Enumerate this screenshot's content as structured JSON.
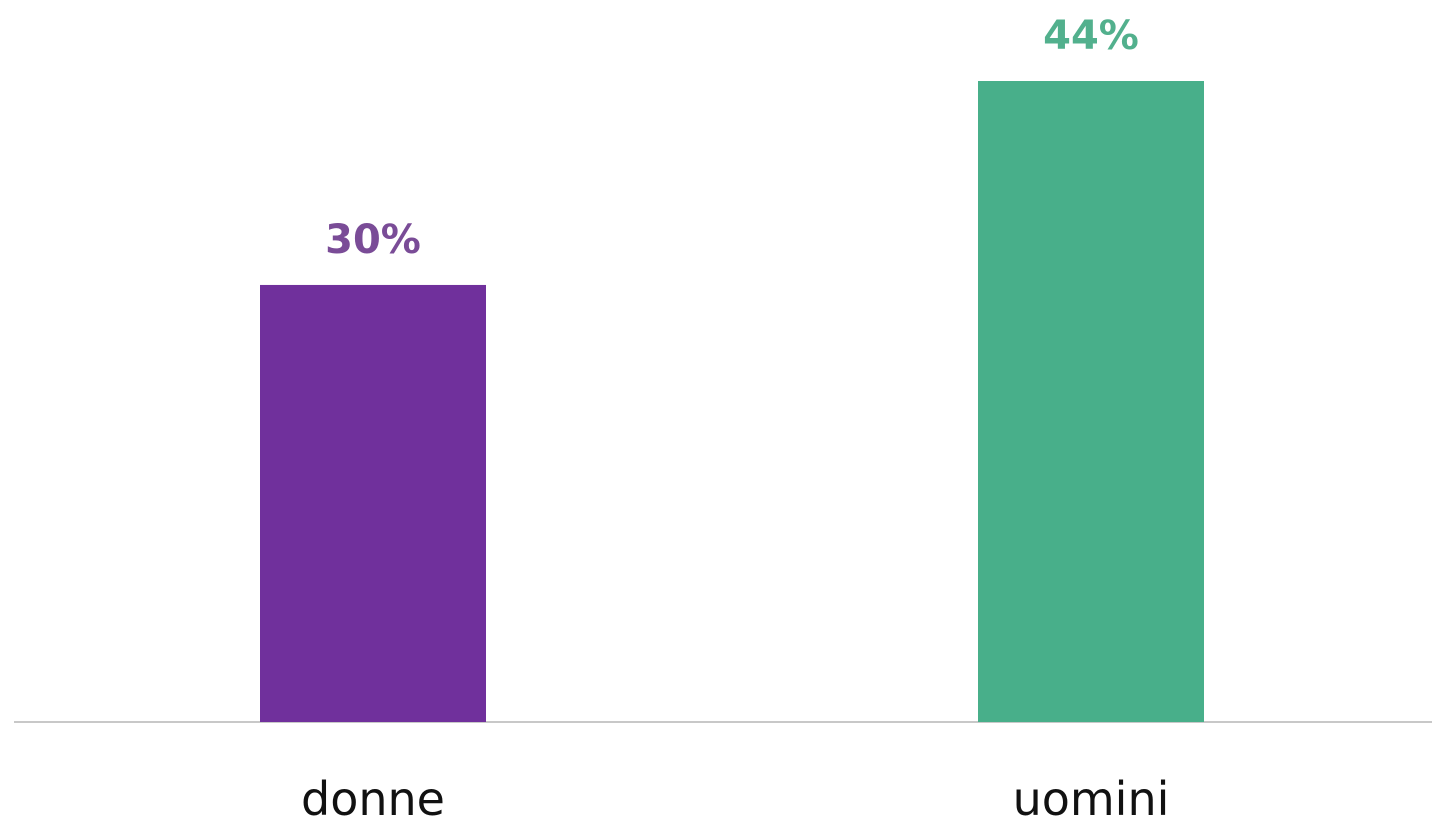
{
  "chart_data": {
    "type": "bar",
    "categories": [
      "donne",
      "uomini"
    ],
    "values": [
      30,
      44
    ],
    "value_labels": [
      "30%",
      "44%"
    ],
    "unit": "%",
    "bar_colors": [
      "#70309C",
      "#48AF8A"
    ],
    "label_colors": [
      "#7A4C97",
      "#52B08D"
    ],
    "axis_color": "#C8C8C8",
    "ylim": [
      0,
      44
    ],
    "grid": false,
    "legend": "none"
  }
}
